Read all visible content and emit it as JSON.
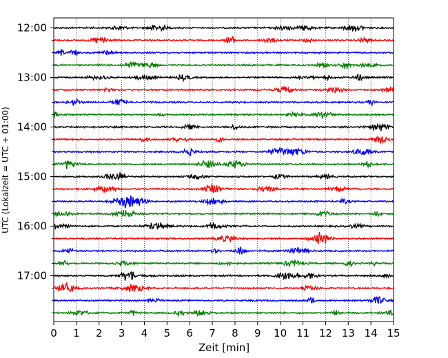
{
  "chart_data": {
    "type": "line",
    "title": "",
    "xlabel": "Zeit  [min]",
    "ylabel": "UTC (Lokalzeit = UTC + 01:00)",
    "xlim": [
      0,
      15
    ],
    "x_ticks": [
      "0",
      "1",
      "2",
      "3",
      "4",
      "5",
      "6",
      "7",
      "8",
      "9",
      "10",
      "11",
      "12",
      "13",
      "14",
      "15"
    ],
    "y_ticks": [
      "12:00",
      "13:00",
      "14:00",
      "15:00",
      "16:00",
      "17:00"
    ],
    "grid": "vertical dotted",
    "legend": "none",
    "trace_colors": [
      "#000000",
      "#ff0000",
      "#0000ff",
      "#007f00"
    ],
    "rows": [
      {
        "start": "12:00",
        "color": "#000000"
      },
      {
        "start": "12:15",
        "color": "#ff0000"
      },
      {
        "start": "12:30",
        "color": "#0000ff"
      },
      {
        "start": "12:45",
        "color": "#007f00"
      },
      {
        "start": "13:00",
        "color": "#000000"
      },
      {
        "start": "13:15",
        "color": "#ff0000"
      },
      {
        "start": "13:30",
        "color": "#0000ff"
      },
      {
        "start": "13:45",
        "color": "#007f00"
      },
      {
        "start": "14:00",
        "color": "#000000"
      },
      {
        "start": "14:15",
        "color": "#ff0000"
      },
      {
        "start": "14:30",
        "color": "#0000ff"
      },
      {
        "start": "14:45",
        "color": "#007f00"
      },
      {
        "start": "15:00",
        "color": "#000000"
      },
      {
        "start": "15:15",
        "color": "#ff0000"
      },
      {
        "start": "15:30",
        "color": "#0000ff"
      },
      {
        "start": "15:45",
        "color": "#007f00"
      },
      {
        "start": "16:00",
        "color": "#000000"
      },
      {
        "start": "16:15",
        "color": "#ff0000"
      },
      {
        "start": "16:30",
        "color": "#0000ff"
      },
      {
        "start": "16:45",
        "color": "#007f00"
      },
      {
        "start": "17:00",
        "color": "#000000"
      },
      {
        "start": "17:15",
        "color": "#ff0000"
      },
      {
        "start": "17:30",
        "color": "#0000ff"
      },
      {
        "start": "17:45",
        "color": "#007f00"
      }
    ]
  }
}
